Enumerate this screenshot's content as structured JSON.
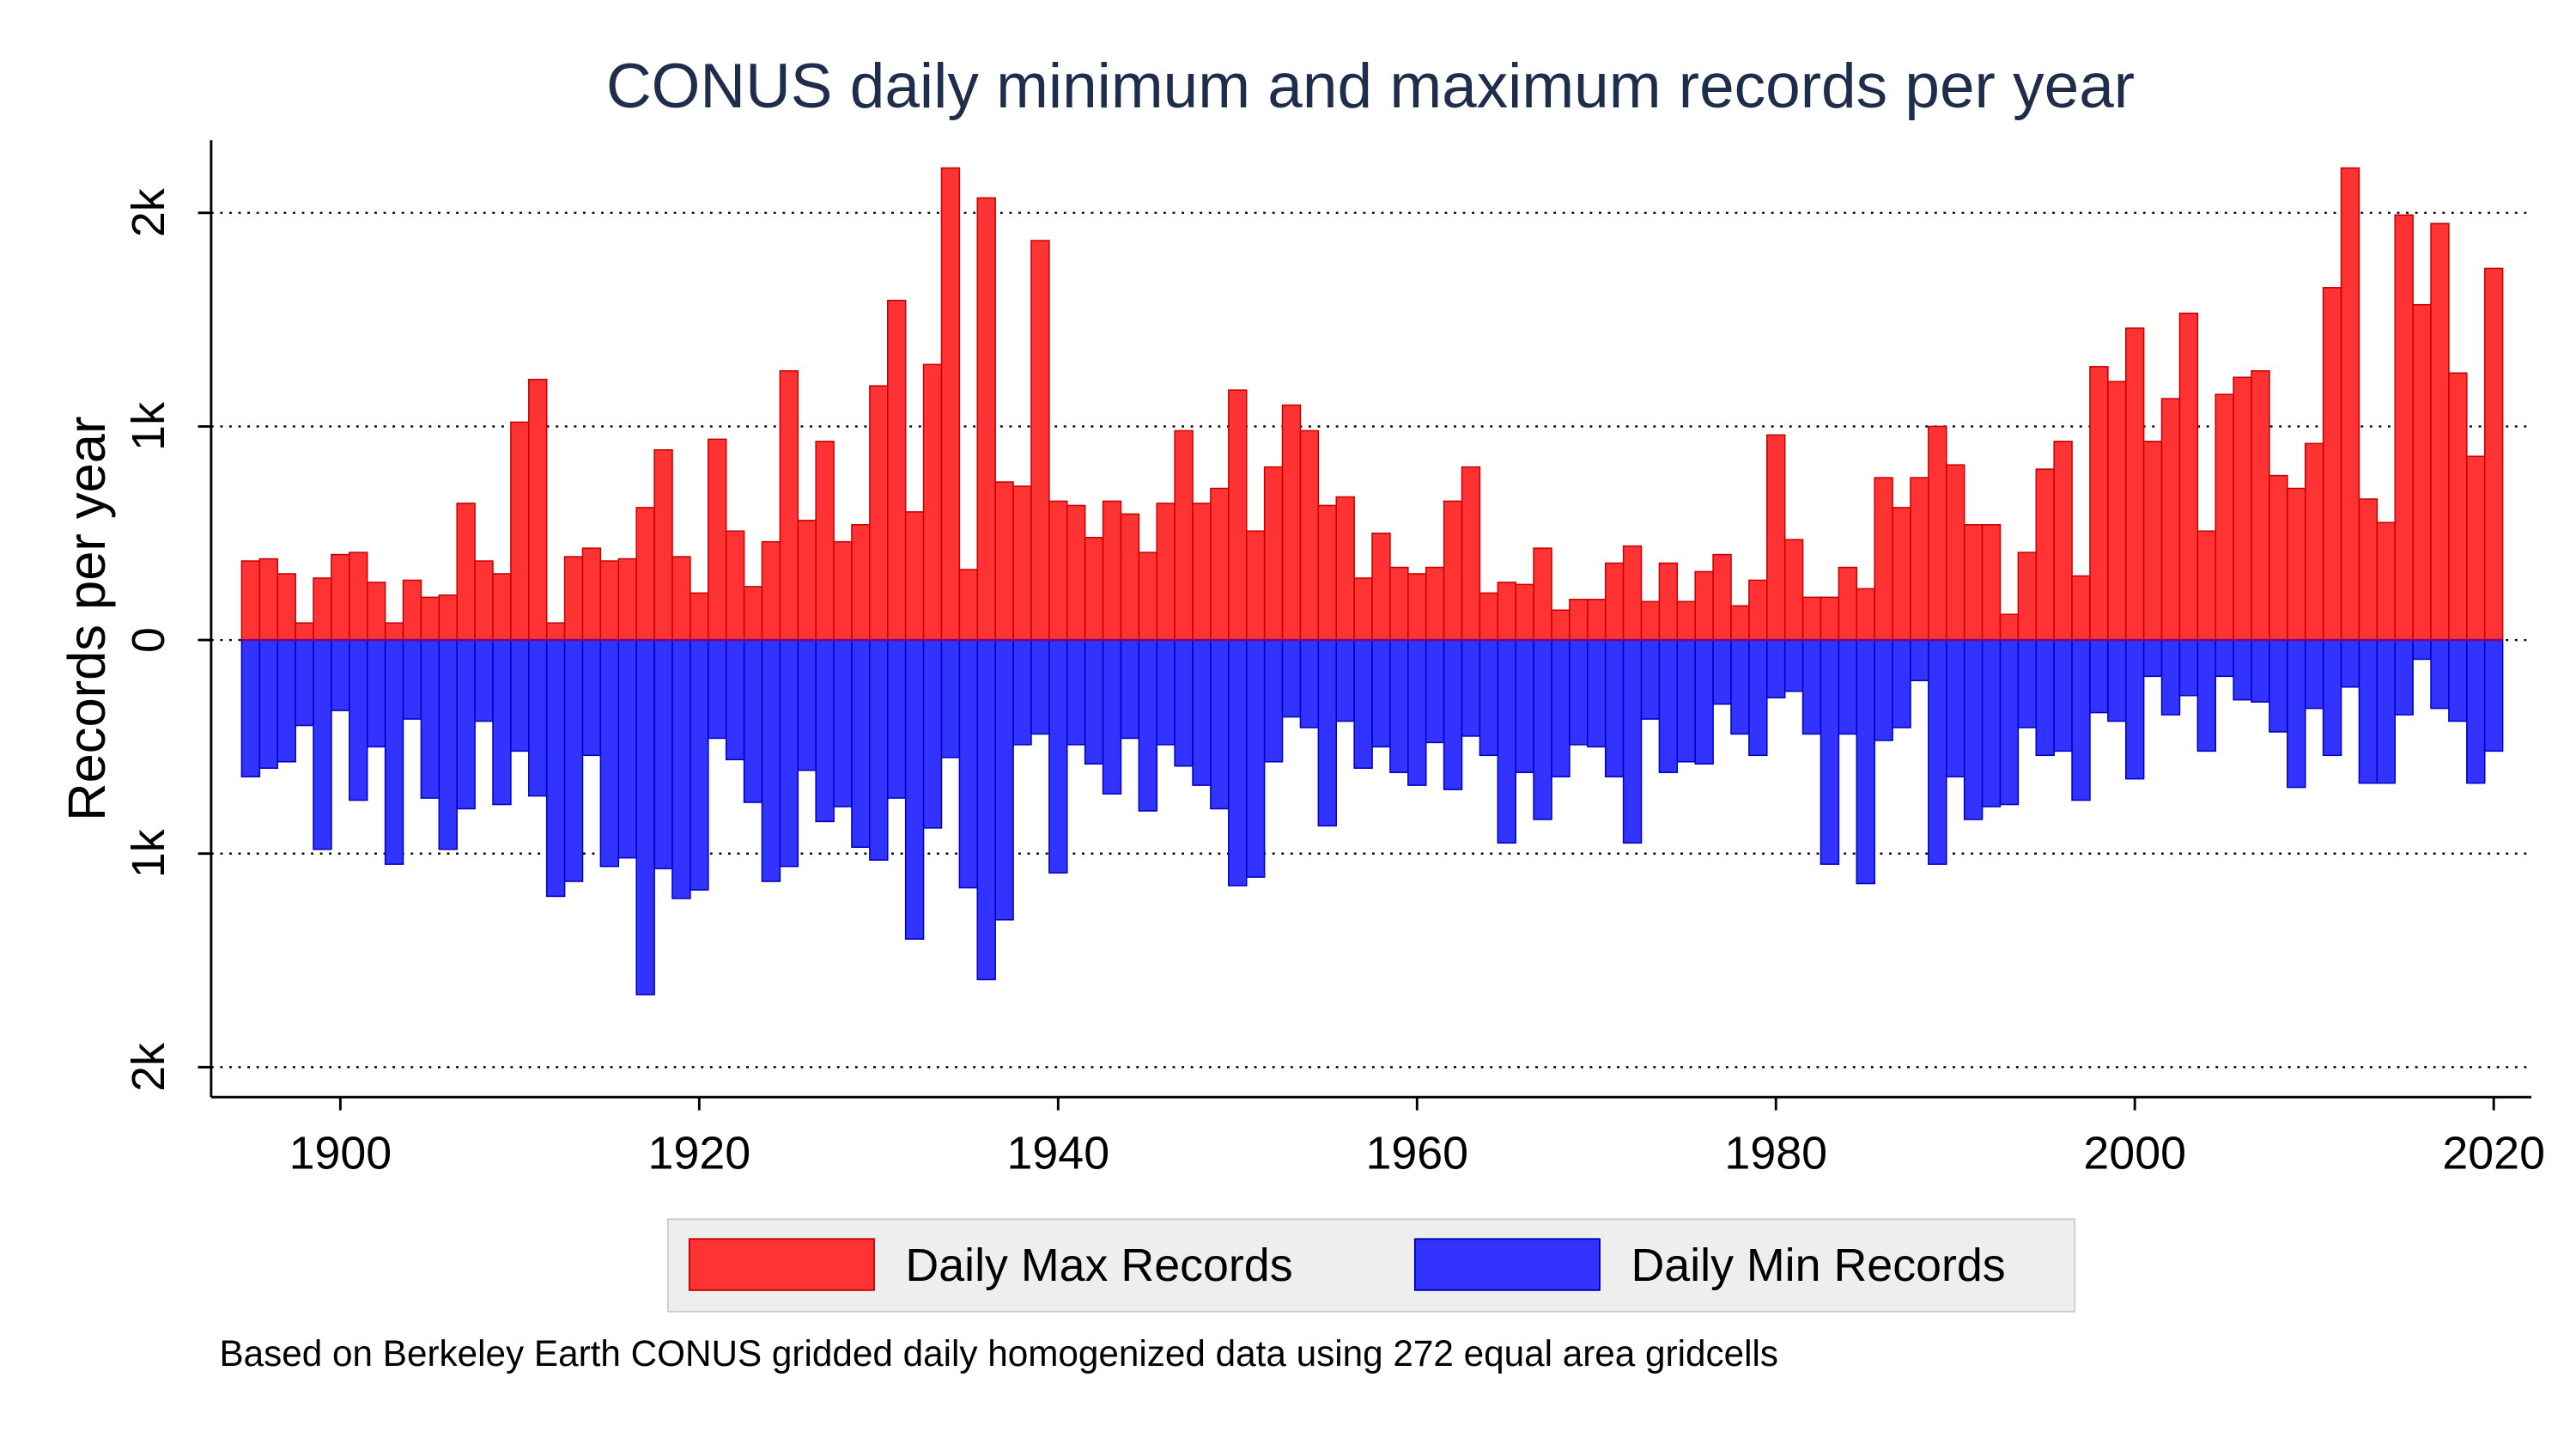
{
  "chart_data": {
    "type": "bar",
    "title": "CONUS daily minimum and maximum records per year",
    "y_label": "Records per year",
    "note": "Based on Berkeley Earth CONUS gridded daily homogenized data using 272 equal area gridcells",
    "x": [
      1895,
      1896,
      1897,
      1898,
      1899,
      1900,
      1901,
      1902,
      1903,
      1904,
      1905,
      1906,
      1907,
      1908,
      1909,
      1910,
      1911,
      1912,
      1913,
      1914,
      1915,
      1916,
      1917,
      1918,
      1919,
      1920,
      1921,
      1922,
      1923,
      1924,
      1925,
      1926,
      1927,
      1928,
      1929,
      1930,
      1931,
      1932,
      1933,
      1934,
      1935,
      1936,
      1937,
      1938,
      1939,
      1940,
      1941,
      1942,
      1943,
      1944,
      1945,
      1946,
      1947,
      1948,
      1949,
      1950,
      1951,
      1952,
      1953,
      1954,
      1955,
      1956,
      1957,
      1958,
      1959,
      1960,
      1961,
      1962,
      1963,
      1964,
      1965,
      1966,
      1967,
      1968,
      1969,
      1970,
      1971,
      1972,
      1973,
      1974,
      1975,
      1976,
      1977,
      1978,
      1979,
      1980,
      1981,
      1982,
      1983,
      1984,
      1985,
      1986,
      1987,
      1988,
      1989,
      1990,
      1991,
      1992,
      1993,
      1994,
      1995,
      1996,
      1997,
      1998,
      1999,
      2000,
      2001,
      2002,
      2003,
      2004,
      2005,
      2006,
      2007,
      2008,
      2009,
      2010,
      2011,
      2012,
      2013,
      2014,
      2015,
      2016,
      2017,
      2018,
      2019,
      2020
    ],
    "series": [
      {
        "name": "Daily Max Records",
        "color": "#ff3333",
        "values": [
          370,
          380,
          310,
          80,
          290,
          400,
          410,
          270,
          80,
          280,
          200,
          210,
          640,
          370,
          310,
          1020,
          1220,
          80,
          390,
          430,
          370,
          380,
          620,
          890,
          390,
          220,
          940,
          510,
          250,
          460,
          1260,
          560,
          930,
          460,
          540,
          1190,
          1590,
          600,
          1290,
          2210,
          330,
          2070,
          740,
          720,
          1870,
          650,
          630,
          480,
          650,
          590,
          410,
          640,
          980,
          640,
          710,
          1170,
          510,
          810,
          1100,
          980,
          630,
          670,
          290,
          500,
          340,
          310,
          340,
          650,
          810,
          220,
          270,
          260,
          430,
          140,
          190,
          190,
          360,
          440,
          180,
          360,
          180,
          320,
          400,
          160,
          280,
          960,
          470,
          200,
          200,
          340,
          240,
          760,
          620,
          760,
          1000,
          820,
          540,
          540,
          120,
          410,
          800,
          930,
          300,
          1280,
          1210,
          1460,
          930,
          1130,
          1530,
          510,
          1150,
          1230,
          1260,
          770,
          710,
          920,
          1650,
          2210,
          660,
          550,
          1990,
          1570,
          1950,
          1250,
          860,
          1740
        ]
      },
      {
        "name": "Daily Min Records",
        "color": "#3333ff",
        "values": [
          -640,
          -600,
          -570,
          -400,
          -980,
          -330,
          -750,
          -500,
          -1050,
          -370,
          -740,
          -980,
          -790,
          -380,
          -770,
          -520,
          -730,
          -1200,
          -1130,
          -540,
          -1060,
          -1020,
          -1660,
          -1070,
          -1210,
          -1170,
          -460,
          -560,
          -760,
          -1130,
          -1060,
          -610,
          -850,
          -780,
          -970,
          -1030,
          -740,
          -1400,
          -880,
          -550,
          -1160,
          -1590,
          -1310,
          -490,
          -440,
          -1090,
          -490,
          -580,
          -720,
          -460,
          -800,
          -490,
          -590,
          -680,
          -790,
          -1150,
          -1110,
          -570,
          -360,
          -410,
          -870,
          -380,
          -600,
          -500,
          -620,
          -680,
          -480,
          -700,
          -450,
          -540,
          -950,
          -620,
          -840,
          -640,
          -490,
          -500,
          -640,
          -950,
          -370,
          -620,
          -570,
          -580,
          -300,
          -440,
          -540,
          -270,
          -240,
          -440,
          -1050,
          -440,
          -1140,
          -470,
          -410,
          -190,
          -1050,
          -640,
          -840,
          -780,
          -770,
          -410,
          -540,
          -520,
          -750,
          -340,
          -380,
          -650,
          -170,
          -350,
          -260,
          -520,
          -170,
          -280,
          -290,
          -430,
          -690,
          -320,
          -540,
          -220,
          -670,
          -670,
          -350,
          -90,
          -320,
          -380,
          -670,
          -520
        ]
      }
    ],
    "xlim": [
      1892.8,
      2022.1
    ],
    "xticks": [
      1900,
      1920,
      1940,
      1960,
      1980,
      2000,
      2020
    ],
    "ylim": [
      -2140,
      2340
    ],
    "yticks": [
      {
        "value": -2000,
        "label": "2k"
      },
      {
        "value": -1000,
        "label": "1k"
      },
      0,
      {
        "value": 1000,
        "label": "1k"
      },
      {
        "value": 2000,
        "label": "2k"
      }
    ],
    "grid": true
  }
}
